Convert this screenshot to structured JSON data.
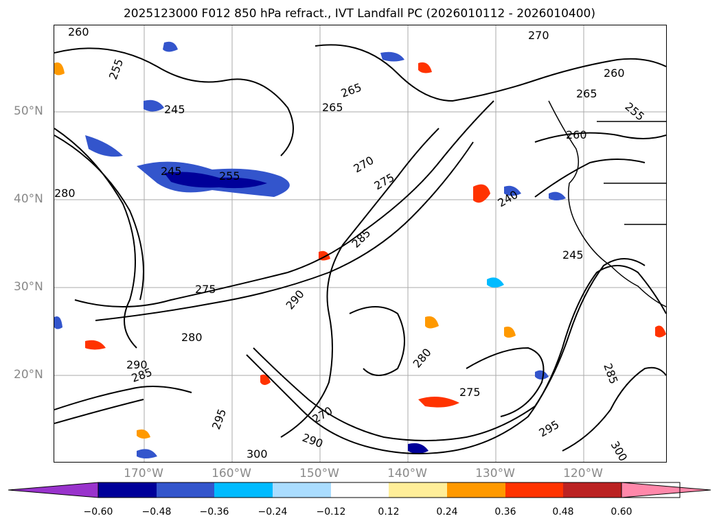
{
  "title": "2025123000 F012 850 hPa refract., IVT Landfall PC (2026010112 - 2026010400)",
  "lat_labels": [
    "50°N",
    "40°N",
    "30°N",
    "20°N"
  ],
  "lon_labels": [
    "170°W",
    "160°W",
    "150°W",
    "140°W",
    "130°W",
    "120°W"
  ],
  "contour_labels": [
    "260",
    "255",
    "245",
    "245",
    "255",
    "265",
    "265",
    "270",
    "270",
    "275",
    "280",
    "285",
    "285",
    "290",
    "290",
    "295",
    "300",
    "300",
    "280",
    "275",
    "260",
    "265",
    "255",
    "240",
    "245",
    "260",
    "270",
    "295",
    "290",
    "285",
    "275",
    "280"
  ],
  "colorbar": {
    "ticks": [
      "−0.60",
      "−0.48",
      "−0.36",
      "−0.24",
      "−0.12",
      "0.12",
      "0.24",
      "0.36",
      "0.48",
      "0.60"
    ],
    "colors": [
      "#9933cc",
      "#000099",
      "#3355cc",
      "#00bbff",
      "#aaddff",
      "#ffffff",
      "#ffee99",
      "#ff9900",
      "#ff3300",
      "#bb2222",
      "#ff88aa"
    ]
  },
  "map": {
    "lat_range": [
      10,
      60
    ],
    "lon_range": [
      -180,
      -110
    ],
    "field": "850 hPa refractivity contours; IVT landfall PC shading"
  }
}
